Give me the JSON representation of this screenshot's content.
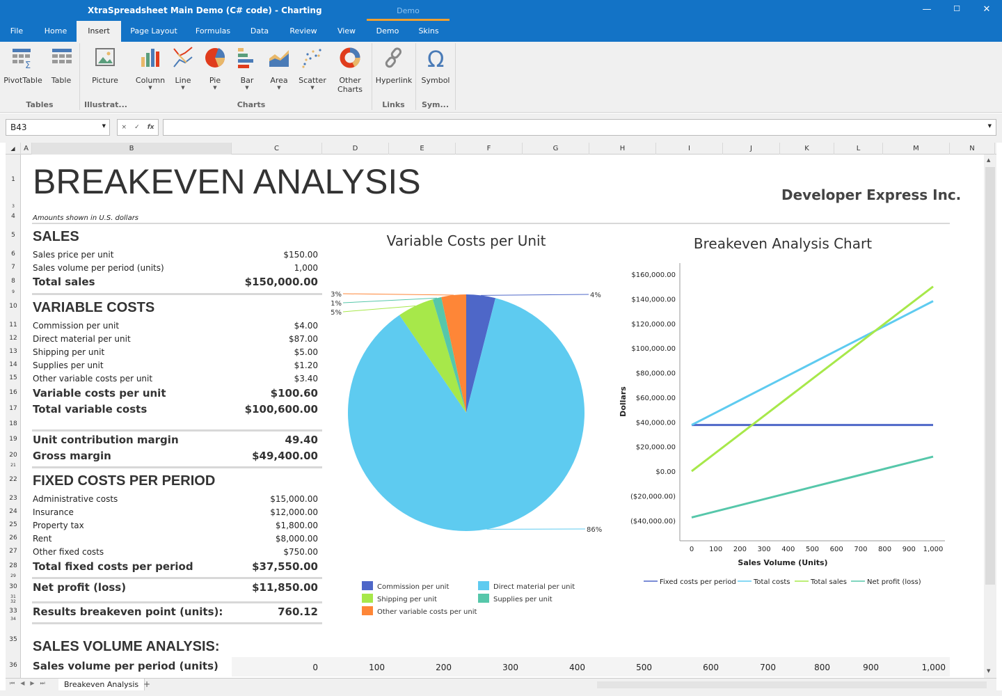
{
  "window": {
    "title": "XtraSpreadsheet Main Demo (C# code) - Charting",
    "context_tab": "Demo",
    "minimize": "—",
    "maximize": "☐",
    "close": "✕"
  },
  "tabs": [
    "File",
    "Home",
    "Insert",
    "Page Layout",
    "Formulas",
    "Data",
    "Review",
    "View",
    "Demo",
    "Skins"
  ],
  "active_tab": "Insert",
  "ribbon": {
    "buttons": [
      {
        "label": "PivotTable",
        "icon": "pivot-table-icon"
      },
      {
        "label": "Table",
        "icon": "table-icon"
      },
      {
        "label": "Picture",
        "icon": "picture-icon"
      },
      {
        "label": "Column",
        "icon": "column-chart-icon"
      },
      {
        "label": "Line",
        "icon": "line-chart-icon"
      },
      {
        "label": "Pie",
        "icon": "pie-chart-icon"
      },
      {
        "label": "Bar",
        "icon": "bar-chart-icon"
      },
      {
        "label": "Area",
        "icon": "area-chart-icon"
      },
      {
        "label": "Scatter",
        "icon": "scatter-chart-icon"
      },
      {
        "label": "Other Charts",
        "icon": "doughnut-chart-icon"
      },
      {
        "label": "Hyperlink",
        "icon": "link-icon"
      },
      {
        "label": "Symbol",
        "icon": "omega-icon"
      }
    ],
    "groups": [
      "Tables",
      "Illustrat...",
      "Charts",
      "Links",
      "Sym..."
    ]
  },
  "formula_bar": {
    "name_box": "B43",
    "cancel": "×",
    "enter": "✓",
    "fx": "fx",
    "formula": ""
  },
  "columns": [
    "A",
    "B",
    "C",
    "D",
    "E",
    "F",
    "G",
    "H",
    "I",
    "J",
    "K",
    "L",
    "M",
    "N"
  ],
  "rows": [
    "1",
    "3",
    "4",
    "5",
    "6",
    "7",
    "8",
    "9",
    "10",
    "11",
    "12",
    "13",
    "14",
    "15",
    "16",
    "17",
    "18",
    "19",
    "20",
    "21",
    "22",
    "23",
    "24",
    "25",
    "26",
    "27",
    "28",
    "29",
    "30",
    "31",
    "32",
    "33",
    "34",
    "35",
    "36"
  ],
  "sheet": {
    "title": "BREAKEVEN ANALYSIS",
    "company": "Developer Express Inc.",
    "note": "Amounts shown in U.S. dollars",
    "sales": {
      "heading": "SALES",
      "items": [
        [
          "Sales price per unit",
          "$150.00"
        ],
        [
          "Sales volume per period (units)",
          "1,000"
        ]
      ],
      "total": [
        "Total sales",
        "$150,000.00"
      ]
    },
    "variable": {
      "heading": "VARIABLE COSTS",
      "items": [
        [
          "Commission per unit",
          "$4.00"
        ],
        [
          "Direct material per unit",
          "$87.00"
        ],
        [
          "Shipping per unit",
          "$5.00"
        ],
        [
          "Supplies per unit",
          "$1.20"
        ],
        [
          "Other variable costs per unit",
          "$3.40"
        ]
      ],
      "totals": [
        [
          "Variable costs per unit",
          "$100.60"
        ],
        [
          "Total variable costs",
          "$100,600.00"
        ]
      ]
    },
    "margins": [
      [
        "Unit contribution margin",
        "49.40"
      ],
      [
        "Gross margin",
        "$49,400.00"
      ]
    ],
    "fixed": {
      "heading": "FIXED COSTS PER PERIOD",
      "items": [
        [
          "Administrative costs",
          "$15,000.00"
        ],
        [
          "Insurance",
          "$12,000.00"
        ],
        [
          "Property tax",
          "$1,800.00"
        ],
        [
          "Rent",
          "$8,000.00"
        ],
        [
          "Other fixed costs",
          "$750.00"
        ]
      ],
      "total": [
        "Total fixed costs per period",
        "$37,550.00"
      ]
    },
    "net_profit": [
      "Net profit (loss)",
      "$11,850.00"
    ],
    "breakeven": [
      "Results breakeven point (units):",
      "760.12"
    ],
    "volume_heading": "SALES VOLUME ANALYSIS:",
    "volume_row": {
      "label": "Sales volume per period (units)",
      "values": [
        "0",
        "100",
        "200",
        "300",
        "400",
        "500",
        "600",
        "700",
        "800",
        "900",
        "1,000"
      ]
    }
  },
  "sheet_tab": "Breakeven Analysis",
  "add_sheet": "+",
  "chart_data": [
    {
      "type": "pie",
      "title": "Variable Costs per Unit",
      "slices": [
        {
          "name": "Commission per unit",
          "value": 4.0,
          "label": "4%",
          "color": "#4e67c8"
        },
        {
          "name": "Direct material per unit",
          "value": 87.0,
          "label": "86%",
          "color": "#5ecbf0"
        },
        {
          "name": "Shipping per unit",
          "value": 5.0,
          "label": "5%",
          "color": "#a7e84a"
        },
        {
          "name": "Supplies per unit",
          "value": 1.2,
          "label": "1%",
          "color": "#56c7aa"
        },
        {
          "name": "Other variable costs per unit",
          "value": 3.4,
          "label": "3%",
          "color": "#fe8637"
        }
      ],
      "legend": "bottom"
    },
    {
      "type": "line",
      "title": "Breakeven Analysis Chart",
      "xlabel": "Sales Volume (Units)",
      "ylabel": "Dollars",
      "x": [
        0,
        100,
        200,
        300,
        400,
        500,
        600,
        700,
        800,
        900,
        1000
      ],
      "xticks": [
        "0",
        "100",
        "200",
        "300",
        "400",
        "500",
        "600",
        "700",
        "800",
        "900",
        "1,000"
      ],
      "ylim": [
        -50000,
        170000
      ],
      "yticks": [
        {
          "v": 160000,
          "t": "$160,000.00"
        },
        {
          "v": 140000,
          "t": "$140,000.00"
        },
        {
          "v": 120000,
          "t": "$120,000.00"
        },
        {
          "v": 100000,
          "t": "$100,000.00"
        },
        {
          "v": 80000,
          "t": "$80,000.00"
        },
        {
          "v": 60000,
          "t": "$60,000.00"
        },
        {
          "v": 40000,
          "t": "$40,000.00"
        },
        {
          "v": 20000,
          "t": "$20,000.00"
        },
        {
          "v": 0,
          "t": "$0.00"
        },
        {
          "v": -20000,
          "t": "($20,000.00)"
        },
        {
          "v": -40000,
          "t": "($40,000.00)"
        }
      ],
      "series": [
        {
          "name": "Fixed costs per period",
          "color": "#4e67c8",
          "values": [
            37550,
            37550,
            37550,
            37550,
            37550,
            37550,
            37550,
            37550,
            37550,
            37550,
            37550
          ]
        },
        {
          "name": "Total costs",
          "color": "#5ecbf0",
          "values": [
            37550,
            47610,
            57670,
            67730,
            77790,
            87850,
            97910,
            107970,
            118030,
            128090,
            138150
          ]
        },
        {
          "name": "Total sales",
          "color": "#a7e84a",
          "values": [
            0,
            15000,
            30000,
            45000,
            60000,
            75000,
            90000,
            105000,
            120000,
            135000,
            150000
          ]
        },
        {
          "name": "Net profit (loss)",
          "color": "#56c7aa",
          "values": [
            -37550,
            -32610,
            -27670,
            -22730,
            -17790,
            -12850,
            -7910,
            -2970,
            1970,
            6910,
            11850
          ]
        }
      ],
      "grid": false,
      "legend": "bottom"
    }
  ]
}
